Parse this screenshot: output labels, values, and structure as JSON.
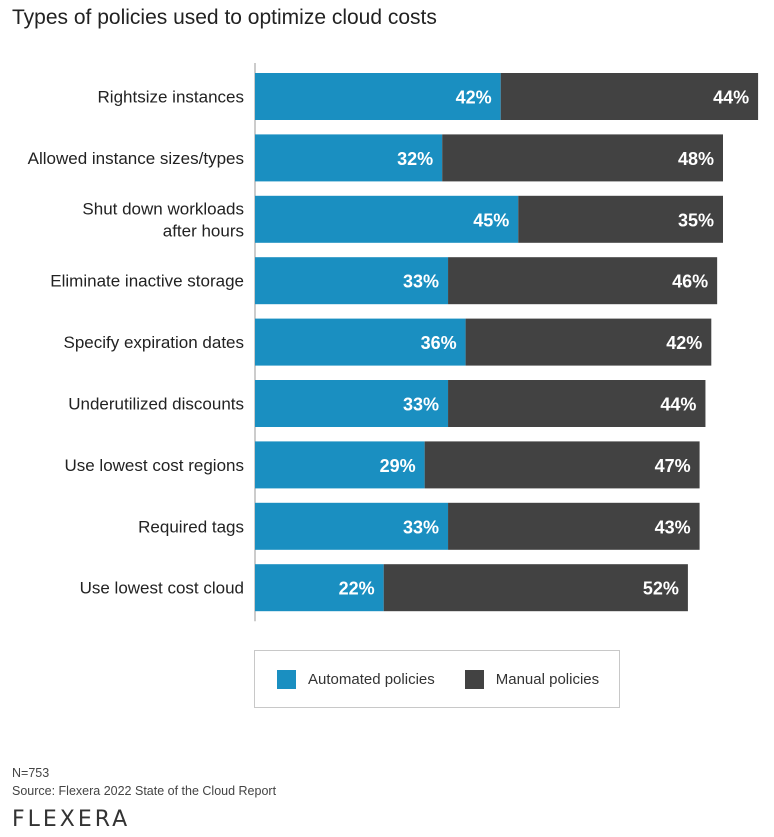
{
  "title": "Types of policies used to optimize cloud costs",
  "chart_data": {
    "type": "bar",
    "orientation": "horizontal",
    "stacked": true,
    "categories": [
      [
        "Rightsize instances"
      ],
      [
        "Allowed instance sizes/types"
      ],
      [
        "Shut down workloads",
        "after hours"
      ],
      [
        "Eliminate inactive storage"
      ],
      [
        "Specify expiration dates"
      ],
      [
        "Underutilized discounts"
      ],
      [
        "Use lowest cost regions"
      ],
      [
        "Required tags"
      ],
      [
        "Use lowest cost cloud"
      ]
    ],
    "series": [
      {
        "name": "Automated policies",
        "color": "#1a8fc1",
        "values": [
          42,
          32,
          45,
          33,
          36,
          33,
          29,
          33,
          22
        ],
        "labels": [
          "42%",
          "32%",
          "45%",
          "33%",
          "36%",
          "33%",
          "29%",
          "33%",
          "22%"
        ]
      },
      {
        "name": "Manual policies",
        "color": "#424242",
        "values": [
          44,
          48,
          35,
          46,
          42,
          44,
          47,
          43,
          52
        ],
        "labels": [
          "44%",
          "48%",
          "35%",
          "46%",
          "42%",
          "44%",
          "47%",
          "43%",
          "52%"
        ]
      }
    ],
    "xlim": [
      0,
      86
    ],
    "unit": "%",
    "grid": false,
    "legend_position": "bottom"
  },
  "legend": [
    {
      "label": "Automated policies",
      "color": "#1a8fc1"
    },
    {
      "label": "Manual policies",
      "color": "#424242"
    }
  ],
  "footer": {
    "n": "N=753",
    "source": "Source: Flexera 2022 State of the Cloud Report",
    "logo": "FLEXERA"
  }
}
